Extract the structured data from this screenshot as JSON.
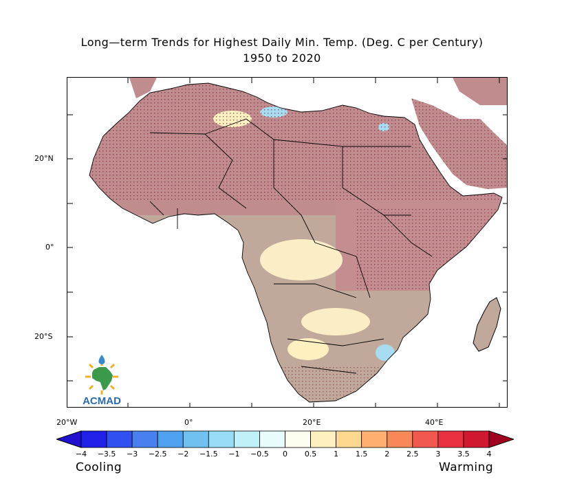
{
  "title": {
    "line1": "Long—term Trends for Highest Daily Min. Temp. (Deg. C per Century)",
    "line2": "1950 to 2020"
  },
  "map": {
    "region": "Africa",
    "lon_ticks": [
      "20°W",
      "0°",
      "20°E",
      "40°E"
    ],
    "lat_ticks": [
      "20°N",
      "0°",
      "20°S"
    ],
    "ocean_color": "#ffffff",
    "land_base_color": "#c0a89a",
    "warming_fill_color": "#c08c8e",
    "cooling_fill_color": "#a8dcf0",
    "neutral_fill_color": "#fbeec6",
    "stipple_color": "#7a2040",
    "border_color": "#000000"
  },
  "colorbar": {
    "ticks": [
      "−4",
      "−3.5",
      "−3",
      "−2.5",
      "−2",
      "−1.5",
      "−1",
      "−0.5",
      "0",
      "0.5",
      "1",
      "1.5",
      "2",
      "2.5",
      "3",
      "3.5",
      "4"
    ],
    "colors": [
      "#2020e8",
      "#3050f0",
      "#4880f0",
      "#50a0f0",
      "#70c0f0",
      "#98dcf8",
      "#c0f0f8",
      "#e8fcfc",
      "#fffcf0",
      "#fff0c0",
      "#ffd890",
      "#ffb070",
      "#f88858",
      "#f05850",
      "#e83040",
      "#d01830"
    ],
    "low_end_color": "#2010d0",
    "high_end_color": "#a00020",
    "left_label": "Cooling",
    "right_label": "Warming"
  },
  "logo": {
    "text": "ACMAD",
    "colors": {
      "continent": "#3a9a4a",
      "rays": "#f0b020",
      "drop": "#3a8ad0",
      "text": "#2a6ab0"
    }
  }
}
